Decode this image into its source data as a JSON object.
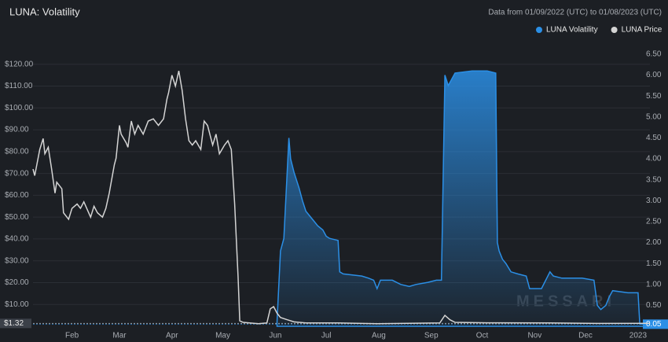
{
  "chart_data": {
    "type": "line",
    "title": "LUNA: Volatility",
    "subtitle": "Data from 01/09/2022 (UTC) to 01/08/2023 (UTC)",
    "watermark": "MESSARI",
    "xlim": [
      0,
      364
    ],
    "xticks": [
      {
        "value": 23,
        "label": "Feb"
      },
      {
        "value": 51,
        "label": "Mar"
      },
      {
        "value": 82,
        "label": "Apr"
      },
      {
        "value": 112,
        "label": "May"
      },
      {
        "value": 143,
        "label": "Jun"
      },
      {
        "value": 173,
        "label": "Jul"
      },
      {
        "value": 204,
        "label": "Aug"
      },
      {
        "value": 235,
        "label": "Sep"
      },
      {
        "value": 265,
        "label": "Oct"
      },
      {
        "value": 296,
        "label": "Nov"
      },
      {
        "value": 326,
        "label": "Dec"
      },
      {
        "value": 357,
        "label": "2023"
      }
    ],
    "ylim": [
      0,
      130
    ],
    "yticks": [
      {
        "value": 10,
        "label": "$10.00"
      },
      {
        "value": 20,
        "label": "$20.00"
      },
      {
        "value": 30,
        "label": "$30.00"
      },
      {
        "value": 40,
        "label": "$40.00"
      },
      {
        "value": 50,
        "label": "$50.00"
      },
      {
        "value": 60,
        "label": "$60.00"
      },
      {
        "value": 70,
        "label": "$70.00"
      },
      {
        "value": 80,
        "label": "$80.00"
      },
      {
        "value": 90,
        "label": "$90.00"
      },
      {
        "value": 100,
        "label": "$100.00"
      },
      {
        "value": 110,
        "label": "$110.00"
      },
      {
        "value": 120,
        "label": "$120.00"
      }
    ],
    "y2lim": [
      0,
      6.78
    ],
    "y2ticks": [
      {
        "value": 0.5,
        "label": "0.50"
      },
      {
        "value": 1,
        "label": "1.00"
      },
      {
        "value": 1.5,
        "label": "1.50"
      },
      {
        "value": 2,
        "label": "2.00"
      },
      {
        "value": 2.5,
        "label": "2.50"
      },
      {
        "value": 3,
        "label": "3.00"
      },
      {
        "value": 3.5,
        "label": "3.50"
      },
      {
        "value": 4,
        "label": "4.00"
      },
      {
        "value": 4.5,
        "label": "4.50"
      },
      {
        "value": 5,
        "label": "5.00"
      },
      {
        "value": 5.5,
        "label": "5.50"
      },
      {
        "value": 6,
        "label": "6.00"
      },
      {
        "value": 6.5,
        "label": "6.50"
      }
    ],
    "grid": true,
    "legend": "top-right",
    "series": [
      {
        "name": "LUNA Volatility",
        "color": "#2b8fe6",
        "axis": "y2",
        "style": "area",
        "x": [
          144,
          146,
          148,
          151,
          152,
          154,
          157,
          159,
          161,
          164,
          166,
          168,
          171,
          173,
          175,
          180,
          181,
          183,
          194,
          198,
          201,
          203,
          205,
          212,
          217,
          222,
          226,
          233,
          238,
          241,
          243,
          245,
          247,
          249,
          259,
          268,
          273,
          274,
          275,
          277,
          279,
          282,
          286,
          291,
          293,
          300,
          305,
          307,
          312,
          324,
          331,
          333,
          335,
          338,
          340,
          342,
          351,
          357,
          358,
          364
        ],
        "values": [
          0.1,
          1.8,
          2.1,
          4.5,
          4.0,
          3.68,
          3.3,
          3.0,
          2.75,
          2.6,
          2.5,
          2.4,
          2.3,
          2.15,
          2.1,
          2.05,
          1.3,
          1.25,
          1.2,
          1.15,
          1.1,
          0.9,
          1.1,
          1.1,
          1.0,
          0.95,
          1.0,
          1.05,
          1.1,
          1.1,
          6.0,
          5.75,
          5.9,
          6.05,
          6.1,
          6.1,
          6.05,
          2.0,
          1.8,
          1.6,
          1.5,
          1.3,
          1.25,
          1.2,
          0.9,
          0.9,
          1.3,
          1.2,
          1.15,
          1.15,
          1.1,
          0.5,
          0.4,
          0.5,
          0.7,
          0.85,
          0.8,
          0.8,
          0.05,
          0.05
        ],
        "last_label": {
          "value": 0.05,
          "label": "0.05"
        }
      },
      {
        "name": "LUNA Price",
        "color": "#d4d4d4",
        "axis": "y",
        "style": "line",
        "x": [
          0,
          1,
          4,
          6,
          7,
          9,
          11,
          13,
          14,
          17,
          18,
          21,
          23,
          26,
          28,
          30,
          34,
          36,
          38,
          41,
          43,
          45,
          48,
          49,
          51,
          52,
          55,
          56,
          58,
          60,
          62,
          65,
          68,
          71,
          74,
          77,
          79,
          80,
          82,
          84,
          86,
          88,
          90,
          92,
          94,
          96,
          99,
          101,
          103,
          106,
          108,
          110,
          113,
          115,
          117,
          119,
          121,
          122,
          124,
          133,
          138,
          140,
          142,
          144,
          146,
          150,
          154,
          161,
          180,
          203,
          240,
          243,
          246,
          249,
          268,
          305,
          333,
          364
        ],
        "values": [
          72,
          69,
          81,
          86,
          79,
          82,
          72,
          61,
          66,
          63,
          52,
          49,
          54,
          56,
          54,
          57,
          50,
          55,
          52,
          50,
          54,
          61,
          74,
          77,
          92,
          88,
          84,
          82,
          94,
          88,
          92,
          88,
          94,
          95,
          92,
          95,
          104,
          107,
          115,
          110,
          117,
          108,
          95,
          85,
          83,
          85,
          81,
          94,
          92,
          83,
          88,
          79,
          83,
          85,
          81,
          56,
          23,
          2.5,
          1.8,
          1.2,
          1.5,
          8,
          9,
          6,
          4,
          3,
          2,
          1.5,
          1.5,
          1.2,
          1.5,
          5,
          3,
          1.8,
          1.6,
          1.5,
          1.3,
          1.32
        ],
        "last_label": {
          "value": 1.32,
          "label": "$1.32"
        }
      }
    ]
  }
}
